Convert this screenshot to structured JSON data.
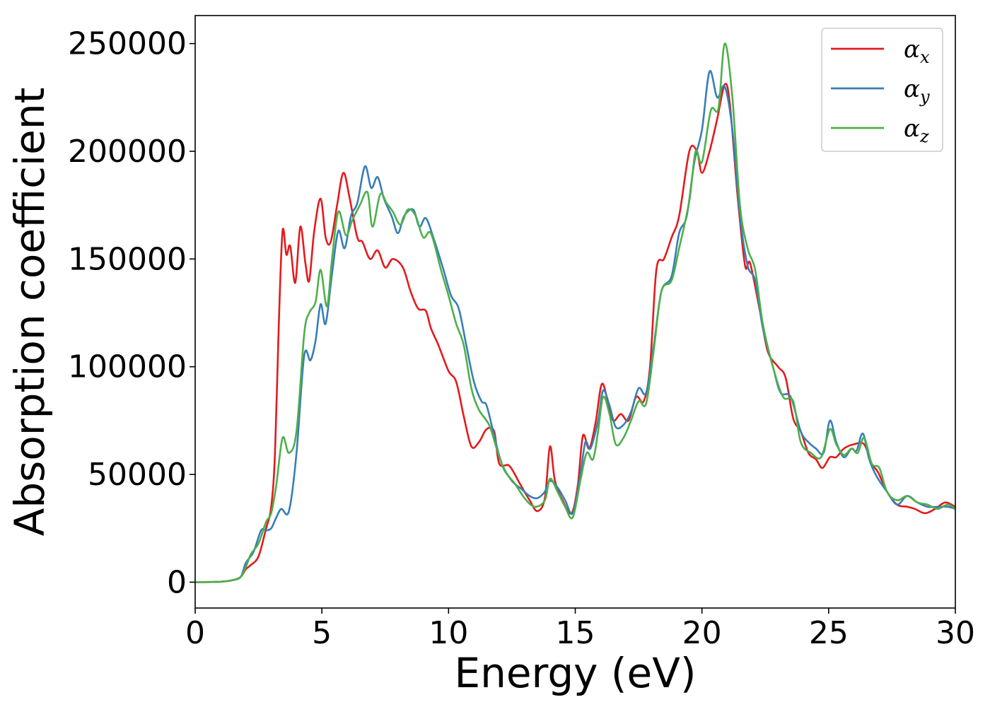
{
  "chart_data": {
    "type": "line",
    "title": "",
    "xlabel": "Energy (eV)",
    "ylabel": "Absorption coefficient",
    "xlim": [
      0,
      30
    ],
    "ylim": [
      -12000,
      263000
    ],
    "xticks": [
      0,
      5,
      10,
      15,
      20,
      25,
      30
    ],
    "xtick_labels": [
      "0",
      "5",
      "10",
      "15",
      "20",
      "25",
      "30"
    ],
    "yticks": [
      0,
      50000,
      100000,
      150000,
      200000,
      250000
    ],
    "ytick_labels": [
      "0",
      "50000",
      "100000",
      "150000",
      "200000",
      "250000"
    ],
    "grid": false,
    "legend_position": "top-right",
    "series": [
      {
        "name": "α_x",
        "legend_base": "α",
        "legend_sub": "x",
        "color": "#e41a1c",
        "points": [
          [
            0,
            0
          ],
          [
            1,
            200
          ],
          [
            1.5,
            1000
          ],
          [
            1.8,
            2500
          ],
          [
            2.0,
            6000
          ],
          [
            2.2,
            8000
          ],
          [
            2.5,
            12000
          ],
          [
            2.8,
            25000
          ],
          [
            3.0,
            35000
          ],
          [
            3.15,
            60000
          ],
          [
            3.3,
            120000
          ],
          [
            3.45,
            163000
          ],
          [
            3.6,
            152000
          ],
          [
            3.75,
            156000
          ],
          [
            3.95,
            139000
          ],
          [
            4.15,
            165000
          ],
          [
            4.35,
            148000
          ],
          [
            4.5,
            140000
          ],
          [
            4.7,
            163000
          ],
          [
            4.95,
            178000
          ],
          [
            5.15,
            160000
          ],
          [
            5.35,
            158000
          ],
          [
            5.6,
            175000
          ],
          [
            5.85,
            190000
          ],
          [
            6.1,
            178000
          ],
          [
            6.4,
            160000
          ],
          [
            6.6,
            158000
          ],
          [
            6.9,
            150000
          ],
          [
            7.2,
            154000
          ],
          [
            7.5,
            146000
          ],
          [
            7.8,
            150000
          ],
          [
            8.2,
            146000
          ],
          [
            8.5,
            135000
          ],
          [
            8.8,
            127000
          ],
          [
            9.1,
            126000
          ],
          [
            9.3,
            118000
          ],
          [
            9.6,
            110000
          ],
          [
            10.0,
            98000
          ],
          [
            10.3,
            93000
          ],
          [
            10.6,
            77000
          ],
          [
            10.9,
            63000
          ],
          [
            11.2,
            65000
          ],
          [
            11.5,
            71000
          ],
          [
            11.8,
            70000
          ],
          [
            12.0,
            55000
          ],
          [
            12.4,
            54000
          ],
          [
            12.8,
            46000
          ],
          [
            13.2,
            38000
          ],
          [
            13.5,
            33000
          ],
          [
            13.8,
            39000
          ],
          [
            14.0,
            63000
          ],
          [
            14.2,
            47000
          ],
          [
            14.5,
            38000
          ],
          [
            14.85,
            32000
          ],
          [
            15.1,
            45000
          ],
          [
            15.3,
            68000
          ],
          [
            15.55,
            62000
          ],
          [
            15.8,
            74000
          ],
          [
            16.05,
            92000
          ],
          [
            16.3,
            83000
          ],
          [
            16.5,
            75000
          ],
          [
            16.8,
            78000
          ],
          [
            17.1,
            75000
          ],
          [
            17.4,
            86000
          ],
          [
            17.7,
            84000
          ],
          [
            17.95,
            100000
          ],
          [
            18.2,
            145000
          ],
          [
            18.5,
            150000
          ],
          [
            18.8,
            160000
          ],
          [
            19.1,
            170000
          ],
          [
            19.5,
            200000
          ],
          [
            19.8,
            200000
          ],
          [
            20.0,
            190000
          ],
          [
            20.3,
            200000
          ],
          [
            20.6,
            215000
          ],
          [
            20.9,
            231000
          ],
          [
            21.1,
            222000
          ],
          [
            21.4,
            180000
          ],
          [
            21.7,
            147000
          ],
          [
            21.9,
            148000
          ],
          [
            22.3,
            125000
          ],
          [
            22.6,
            107000
          ],
          [
            23.0,
            100000
          ],
          [
            23.3,
            95000
          ],
          [
            23.6,
            76000
          ],
          [
            23.9,
            70000
          ],
          [
            24.2,
            60000
          ],
          [
            24.5,
            57000
          ],
          [
            24.75,
            53000
          ],
          [
            25.05,
            58000
          ],
          [
            25.3,
            58000
          ],
          [
            25.6,
            62000
          ],
          [
            26.0,
            64000
          ],
          [
            26.4,
            64000
          ],
          [
            26.7,
            55000
          ],
          [
            26.95,
            51000
          ],
          [
            27.3,
            42000
          ],
          [
            27.7,
            36000
          ],
          [
            28.1,
            35000
          ],
          [
            28.4,
            34000
          ],
          [
            28.8,
            32000
          ],
          [
            29.2,
            34000
          ],
          [
            29.6,
            37000
          ],
          [
            30,
            35000
          ]
        ]
      },
      {
        "name": "α_y",
        "legend_base": "α",
        "legend_sub": "y",
        "color": "#377eb8",
        "points": [
          [
            0,
            0
          ],
          [
            1,
            200
          ],
          [
            1.5,
            1000
          ],
          [
            1.8,
            2500
          ],
          [
            2.0,
            9000
          ],
          [
            2.3,
            14000
          ],
          [
            2.6,
            24000
          ],
          [
            2.8,
            24000
          ],
          [
            3.0,
            25000
          ],
          [
            3.2,
            30000
          ],
          [
            3.4,
            34000
          ],
          [
            3.7,
            33000
          ],
          [
            4.0,
            60000
          ],
          [
            4.3,
            105000
          ],
          [
            4.55,
            103000
          ],
          [
            4.75,
            112000
          ],
          [
            4.95,
            129000
          ],
          [
            5.15,
            120000
          ],
          [
            5.4,
            143000
          ],
          [
            5.65,
            163000
          ],
          [
            5.9,
            155000
          ],
          [
            6.15,
            170000
          ],
          [
            6.4,
            176000
          ],
          [
            6.7,
            193000
          ],
          [
            6.95,
            183000
          ],
          [
            7.2,
            188000
          ],
          [
            7.45,
            178000
          ],
          [
            7.75,
            170000
          ],
          [
            8.0,
            162000
          ],
          [
            8.25,
            170000
          ],
          [
            8.6,
            173000
          ],
          [
            8.85,
            165000
          ],
          [
            9.1,
            169000
          ],
          [
            9.4,
            160000
          ],
          [
            9.8,
            145000
          ],
          [
            10.1,
            133000
          ],
          [
            10.4,
            127000
          ],
          [
            10.7,
            110000
          ],
          [
            11.0,
            93000
          ],
          [
            11.3,
            84000
          ],
          [
            11.5,
            82000
          ],
          [
            11.8,
            68000
          ],
          [
            12.1,
            55000
          ],
          [
            12.5,
            47000
          ],
          [
            12.9,
            43000
          ],
          [
            13.2,
            40000
          ],
          [
            13.5,
            39000
          ],
          [
            13.8,
            42000
          ],
          [
            14.0,
            47000
          ],
          [
            14.3,
            44000
          ],
          [
            14.6,
            38000
          ],
          [
            14.9,
            32000
          ],
          [
            15.2,
            50000
          ],
          [
            15.4,
            65000
          ],
          [
            15.6,
            62000
          ],
          [
            15.9,
            75000
          ],
          [
            16.1,
            89000
          ],
          [
            16.35,
            82000
          ],
          [
            16.6,
            72000
          ],
          [
            16.9,
            73000
          ],
          [
            17.2,
            79000
          ],
          [
            17.5,
            90000
          ],
          [
            17.8,
            88000
          ],
          [
            18.1,
            110000
          ],
          [
            18.4,
            135000
          ],
          [
            18.8,
            142000
          ],
          [
            19.1,
            162000
          ],
          [
            19.4,
            170000
          ],
          [
            19.7,
            195000
          ],
          [
            20.0,
            210000
          ],
          [
            20.3,
            237000
          ],
          [
            20.6,
            225000
          ],
          [
            20.9,
            230000
          ],
          [
            21.2,
            210000
          ],
          [
            21.5,
            170000
          ],
          [
            21.8,
            147000
          ],
          [
            22.1,
            140000
          ],
          [
            22.4,
            118000
          ],
          [
            22.8,
            100000
          ],
          [
            23.1,
            88000
          ],
          [
            23.5,
            86000
          ],
          [
            23.9,
            70000
          ],
          [
            24.2,
            65000
          ],
          [
            24.5,
            62000
          ],
          [
            24.8,
            60000
          ],
          [
            25.05,
            75000
          ],
          [
            25.3,
            65000
          ],
          [
            25.6,
            58000
          ],
          [
            25.9,
            62000
          ],
          [
            26.1,
            61000
          ],
          [
            26.35,
            69000
          ],
          [
            26.6,
            57000
          ],
          [
            26.9,
            49000
          ],
          [
            27.3,
            42000
          ],
          [
            27.7,
            36000
          ],
          [
            28.1,
            40000
          ],
          [
            28.5,
            37000
          ],
          [
            28.9,
            35000
          ],
          [
            29.3,
            35000
          ],
          [
            29.7,
            35000
          ],
          [
            30,
            34000
          ]
        ]
      },
      {
        "name": "α_z",
        "legend_base": "α",
        "legend_sub": "z",
        "color": "#4daf4a",
        "points": [
          [
            0,
            0
          ],
          [
            1,
            200
          ],
          [
            1.5,
            1000
          ],
          [
            1.8,
            2500
          ],
          [
            2.0,
            7000
          ],
          [
            2.2,
            13000
          ],
          [
            2.5,
            18000
          ],
          [
            2.8,
            28000
          ],
          [
            3.0,
            32000
          ],
          [
            3.2,
            45000
          ],
          [
            3.45,
            67000
          ],
          [
            3.7,
            60000
          ],
          [
            4.0,
            70000
          ],
          [
            4.3,
            115000
          ],
          [
            4.5,
            125000
          ],
          [
            4.75,
            130000
          ],
          [
            4.95,
            145000
          ],
          [
            5.2,
            128000
          ],
          [
            5.4,
            150000
          ],
          [
            5.65,
            172000
          ],
          [
            5.95,
            161000
          ],
          [
            6.2,
            168000
          ],
          [
            6.5,
            175000
          ],
          [
            6.8,
            181000
          ],
          [
            7.0,
            165000
          ],
          [
            7.3,
            180000
          ],
          [
            7.55,
            176000
          ],
          [
            7.8,
            172000
          ],
          [
            8.1,
            166000
          ],
          [
            8.4,
            173000
          ],
          [
            8.7,
            170000
          ],
          [
            9.0,
            160000
          ],
          [
            9.3,
            162000
          ],
          [
            9.7,
            145000
          ],
          [
            10.0,
            133000
          ],
          [
            10.3,
            120000
          ],
          [
            10.6,
            110000
          ],
          [
            10.9,
            90000
          ],
          [
            11.2,
            80000
          ],
          [
            11.6,
            73000
          ],
          [
            11.9,
            62000
          ],
          [
            12.2,
            52000
          ],
          [
            12.6,
            46000
          ],
          [
            13.0,
            39000
          ],
          [
            13.4,
            35000
          ],
          [
            13.8,
            38000
          ],
          [
            14.0,
            48000
          ],
          [
            14.3,
            42000
          ],
          [
            14.6,
            35000
          ],
          [
            14.9,
            30000
          ],
          [
            15.2,
            47000
          ],
          [
            15.45,
            60000
          ],
          [
            15.7,
            57000
          ],
          [
            15.9,
            70000
          ],
          [
            16.1,
            86000
          ],
          [
            16.35,
            78000
          ],
          [
            16.6,
            64000
          ],
          [
            16.9,
            67000
          ],
          [
            17.2,
            75000
          ],
          [
            17.5,
            84000
          ],
          [
            17.8,
            83000
          ],
          [
            18.1,
            108000
          ],
          [
            18.4,
            135000
          ],
          [
            18.8,
            140000
          ],
          [
            19.1,
            155000
          ],
          [
            19.5,
            177000
          ],
          [
            19.75,
            200000
          ],
          [
            20.0,
            195000
          ],
          [
            20.35,
            219000
          ],
          [
            20.65,
            220000
          ],
          [
            20.9,
            250000
          ],
          [
            21.2,
            225000
          ],
          [
            21.5,
            175000
          ],
          [
            21.8,
            155000
          ],
          [
            22.1,
            145000
          ],
          [
            22.4,
            120000
          ],
          [
            22.8,
            100000
          ],
          [
            23.2,
            86000
          ],
          [
            23.6,
            84000
          ],
          [
            23.9,
            65000
          ],
          [
            24.3,
            60000
          ],
          [
            24.7,
            58000
          ],
          [
            25.05,
            71000
          ],
          [
            25.3,
            64000
          ],
          [
            25.6,
            59000
          ],
          [
            25.9,
            62000
          ],
          [
            26.15,
            60000
          ],
          [
            26.4,
            67000
          ],
          [
            26.7,
            55000
          ],
          [
            27.0,
            53000
          ],
          [
            27.3,
            42000
          ],
          [
            27.7,
            38000
          ],
          [
            28.1,
            40000
          ],
          [
            28.5,
            37000
          ],
          [
            28.9,
            36000
          ],
          [
            29.3,
            34000
          ],
          [
            29.7,
            36000
          ],
          [
            30,
            34000
          ]
        ]
      }
    ]
  }
}
